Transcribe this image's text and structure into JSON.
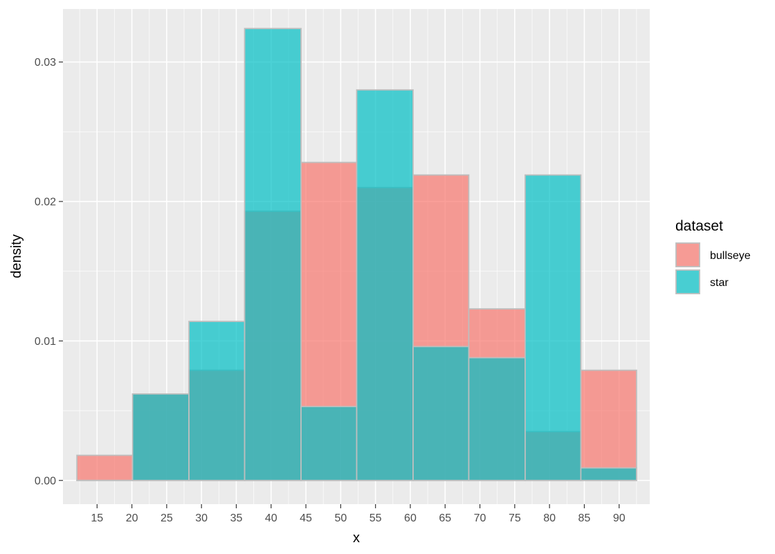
{
  "chart_data": {
    "type": "bar",
    "subtype": "overlapping-histogram",
    "title": "",
    "xlabel": "x",
    "ylabel": "density",
    "xlim": [
      10.1,
      94.4
    ],
    "ylim": [
      -0.0017,
      0.0338
    ],
    "x_ticks": [
      15,
      20,
      25,
      30,
      35,
      40,
      45,
      50,
      55,
      60,
      65,
      70,
      75,
      80,
      85,
      90
    ],
    "y_ticks": [
      0.0,
      0.01,
      0.02,
      0.03
    ],
    "y_tick_labels": [
      "0.00",
      "0.01",
      "0.02",
      "0.03"
    ],
    "grid": true,
    "legend": {
      "title": "dataset",
      "position": "right"
    },
    "bin_edges": [
      12.1,
      20.1,
      28.2,
      36.2,
      44.3,
      52.3,
      60.4,
      68.4,
      76.5,
      84.5,
      92.5
    ],
    "series": [
      {
        "name": "bullseye",
        "color": "#F8766D",
        "values": [
          0.0018,
          0.0062,
          0.0079,
          0.0193,
          0.0228,
          0.021,
          0.0219,
          0.0123,
          0.0035,
          0.0079
        ]
      },
      {
        "name": "star",
        "color": "#00BFC4",
        "values": [
          0.0,
          0.0062,
          0.0114,
          0.0324,
          0.0053,
          0.028,
          0.0096,
          0.0088,
          0.0219,
          0.0009
        ]
      }
    ],
    "fill_opacity": 0.7,
    "bar_outline_color": "#bebebe",
    "panel_background": "#EBEBEB",
    "gridline_color": "#ffffff"
  }
}
